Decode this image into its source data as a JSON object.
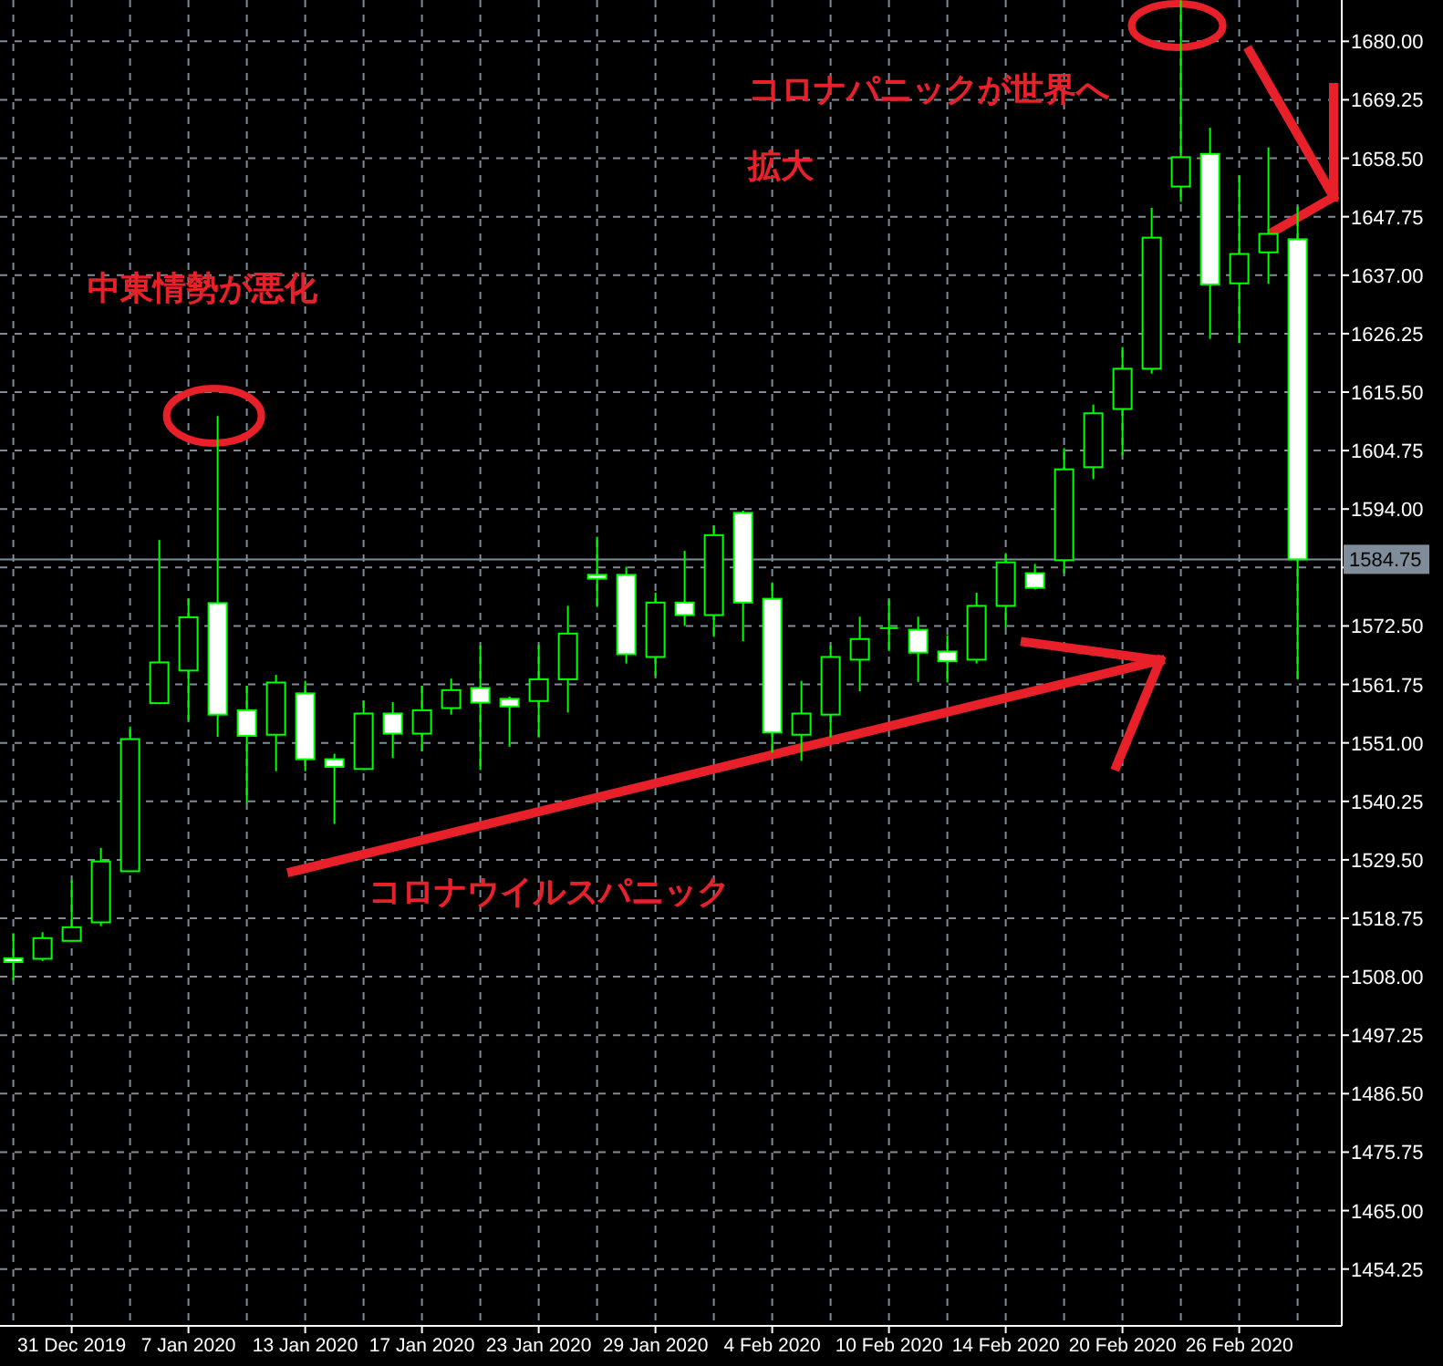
{
  "chart_data": {
    "type": "candlestick",
    "categories": [
      null,
      null,
      "31 Dec 2019",
      null,
      null,
      null,
      "7 Jan 2020",
      null,
      null,
      null,
      "13 Jan 2020",
      null,
      null,
      null,
      "17 Jan 2020",
      null,
      null,
      null,
      "23 Jan 2020",
      null,
      null,
      null,
      "29 Jan 2020",
      null,
      null,
      null,
      "4 Feb 2020",
      null,
      null,
      null,
      "10 Feb 2020",
      null,
      null,
      null,
      "14 Feb 2020",
      null,
      null,
      null,
      "20 Feb 2020",
      null,
      null,
      null,
      "26 Feb 2020",
      null,
      null
    ],
    "ohlc": [
      [
        1511.4,
        1516.0,
        1507.4,
        1510.7
      ],
      [
        1511.3,
        1516.2,
        1510.9,
        1515.1
      ],
      [
        1514.6,
        1525.7,
        1514.5,
        1517.1
      ],
      [
        1518.0,
        1531.7,
        1517.3,
        1529.2
      ],
      [
        1527.4,
        1554.0,
        1527.4,
        1551.7
      ],
      [
        1558.3,
        1588.3,
        1558.3,
        1565.8
      ],
      [
        1564.3,
        1577.5,
        1555.1,
        1574.1
      ],
      [
        1576.7,
        1611.1,
        1552.1,
        1556.2
      ],
      [
        1557.0,
        1561.5,
        1540.0,
        1552.3
      ],
      [
        1552.5,
        1563.5,
        1545.8,
        1562.1
      ],
      [
        1560.1,
        1562.4,
        1545.8,
        1548.0
      ],
      [
        1548.0,
        1549.0,
        1536.1,
        1546.6
      ],
      [
        1546.2,
        1558.7,
        1546.0,
        1556.4
      ],
      [
        1556.4,
        1558.5,
        1548.2,
        1552.7
      ],
      [
        1552.7,
        1561.5,
        1549.5,
        1557.0
      ],
      [
        1557.4,
        1562.8,
        1556.2,
        1560.7
      ],
      [
        1561.1,
        1568.9,
        1546.0,
        1558.4
      ],
      [
        1559.1,
        1559.5,
        1550.3,
        1557.7
      ],
      [
        1558.7,
        1569.0,
        1552.0,
        1562.7
      ],
      [
        1562.7,
        1576.2,
        1556.6,
        1571.1
      ],
      [
        1581.9,
        1588.9,
        1576.0,
        1581.2
      ],
      [
        1581.9,
        1583.4,
        1565.6,
        1567.3
      ],
      [
        1566.8,
        1578.6,
        1563.3,
        1576.8
      ],
      [
        1576.8,
        1586.3,
        1572.5,
        1574.5
      ],
      [
        1574.5,
        1590.9,
        1570.5,
        1589.2
      ],
      [
        1593.3,
        1593.7,
        1569.7,
        1576.8
      ],
      [
        1577.5,
        1580.5,
        1549.2,
        1552.9
      ],
      [
        1552.5,
        1562.4,
        1547.7,
        1556.4
      ],
      [
        1556.2,
        1568.9,
        1552.0,
        1566.8
      ],
      [
        1566.3,
        1574.2,
        1560.5,
        1570.1
      ],
      [
        1572.1,
        1577.3,
        1567.9,
        1572.1
      ],
      [
        1571.8,
        1574.2,
        1562.2,
        1567.6
      ],
      [
        1567.8,
        1570.8,
        1562.1,
        1566.0
      ],
      [
        1566.3,
        1578.6,
        1565.6,
        1576.2
      ],
      [
        1576.2,
        1585.9,
        1572.2,
        1584.2
      ],
      [
        1582.2,
        1583.9,
        1579.2,
        1579.5
      ],
      [
        1584.6,
        1605.2,
        1582.2,
        1601.3
      ],
      [
        1601.7,
        1613.2,
        1599.5,
        1611.6
      ],
      [
        1612.4,
        1623.8,
        1603.9,
        1619.8
      ],
      [
        1619.8,
        1649.4,
        1618.9,
        1643.9
      ],
      [
        1653.3,
        1687.5,
        1650.5,
        1658.7
      ],
      [
        1659.3,
        1664.1,
        1625.3,
        1635.3
      ],
      [
        1635.5,
        1655.3,
        1624.5,
        1640.9
      ],
      [
        1641.2,
        1660.5,
        1635.4,
        1644.6
      ],
      [
        1643.6,
        1649.6,
        1562.7,
        1584.75
      ]
    ],
    "color": "#00ff00",
    "ylim": [
      1443.8,
      1687.6
    ],
    "yticks": [
      {
        "value": 1454.25,
        "label": "1454.25"
      },
      {
        "value": 1465.0,
        "label": "1465.00"
      },
      {
        "value": 1475.75,
        "label": "1475.75"
      },
      {
        "value": 1486.5,
        "label": "1486.50"
      },
      {
        "value": 1497.25,
        "label": "1497.25"
      },
      {
        "value": 1508.0,
        "label": "1508.00"
      },
      {
        "value": 1518.75,
        "label": "1518.75"
      },
      {
        "value": 1529.5,
        "label": "1529.50"
      },
      {
        "value": 1540.25,
        "label": "1540.25"
      },
      {
        "value": 1551.0,
        "label": "1551.00"
      },
      {
        "value": 1561.75,
        "label": "1561.75"
      },
      {
        "value": 1572.5,
        "label": "1572.50"
      },
      {
        "value": 1583.25,
        "label": null
      },
      {
        "value": 1594.0,
        "label": "1594.00"
      },
      {
        "value": 1604.75,
        "label": "1604.75"
      },
      {
        "value": 1615.5,
        "label": "1615.50"
      },
      {
        "value": 1626.25,
        "label": "1626.25"
      },
      {
        "value": 1637.0,
        "label": "1637.00"
      },
      {
        "value": 1647.75,
        "label": "1647.75"
      },
      {
        "value": 1658.5,
        "label": "1658.50"
      },
      {
        "value": 1669.25,
        "label": "1669.25"
      },
      {
        "value": 1680.0,
        "label": "1680.00"
      }
    ],
    "ref_lines": [
      {
        "axis": "y",
        "value": 1584.75,
        "label": "1584.75",
        "color": "#7f8c99"
      }
    ],
    "grid": true,
    "annotations": [
      "コロナパニックが世界へ",
      "拡大",
      "中東情勢が悪化",
      "コロナウイルスパニック"
    ]
  }
}
